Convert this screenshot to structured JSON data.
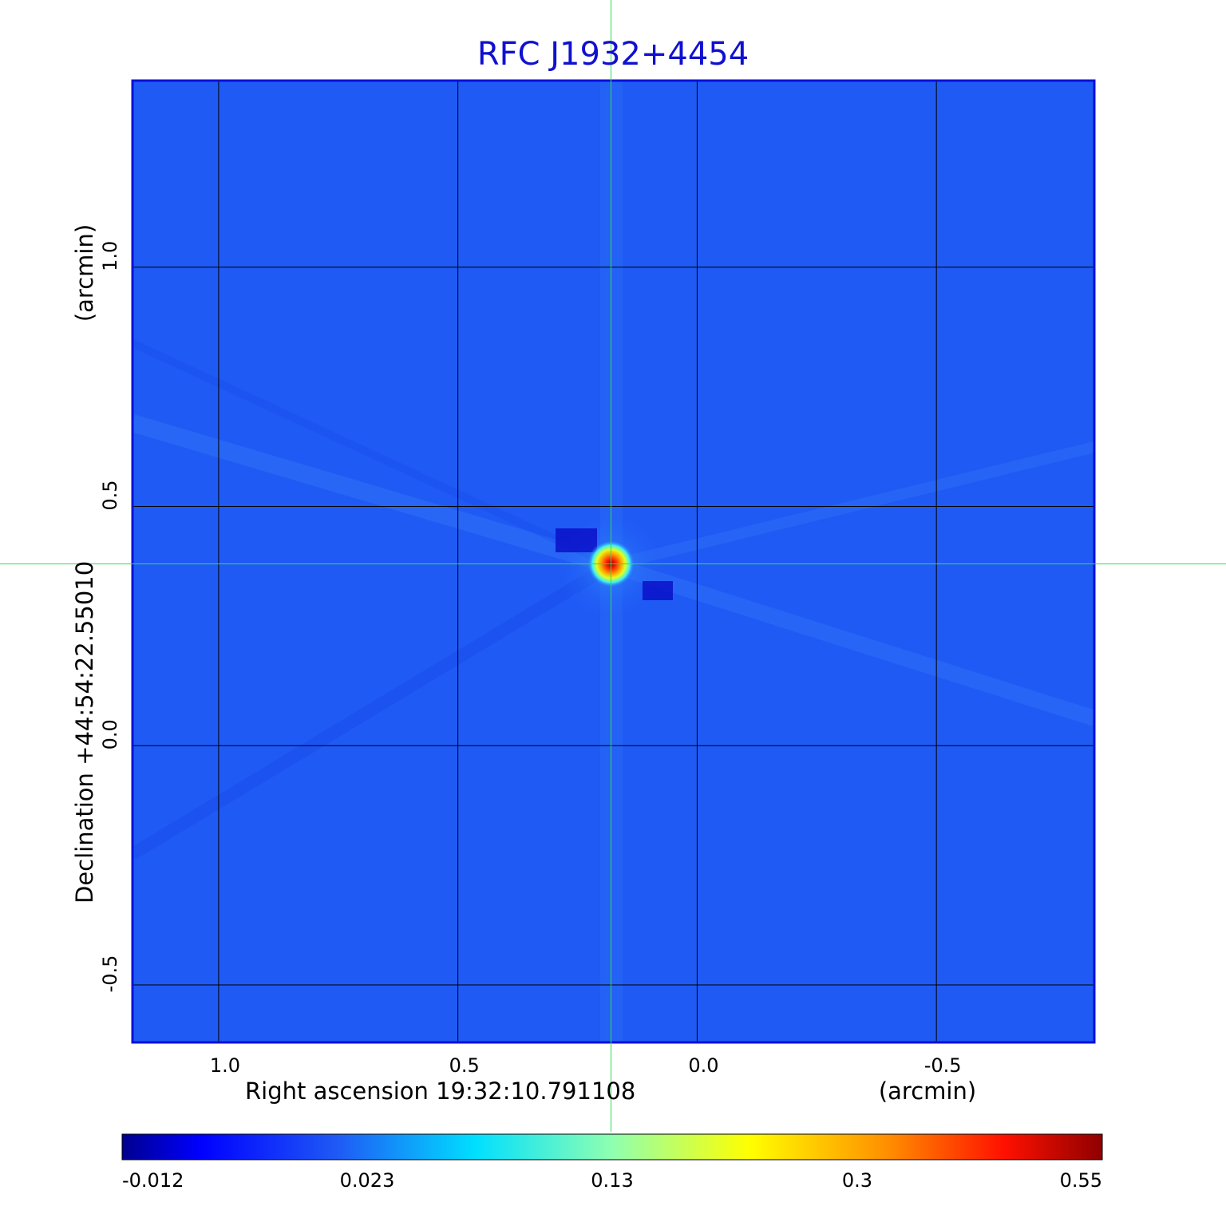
{
  "chart_data": {
    "type": "heatmap",
    "title": "RFC J1932+4454",
    "xlabel": "Right ascension  19:32:10.791108",
    "xunit": "(arcmin)",
    "ylabel": "Declination  +44:54:22.55010",
    "yunit": "(arcmin)",
    "x_ticks": [
      "1.0",
      "0.5",
      "0.0",
      "-0.5"
    ],
    "x_tick_values": [
      1.0,
      0.5,
      0.0,
      -0.5
    ],
    "y_ticks": [
      "1.0",
      "0.5",
      "0.0",
      "-0.5"
    ],
    "y_tick_values": [
      1.0,
      0.5,
      0.0,
      -0.5
    ],
    "xlim": [
      1.18,
      -0.83
    ],
    "ylim": [
      -0.62,
      1.39
    ],
    "grid": true,
    "colormap": "jet",
    "colorbar_ticks": [
      "-0.012",
      "0.023",
      "0.13",
      "0.3",
      "0.55"
    ],
    "colorbar_range": [
      -0.012,
      0.55
    ],
    "source": {
      "x": 0.18,
      "y": 0.38,
      "peak": 0.55
    },
    "crosshair": {
      "x": 0.18,
      "y": 0.38
    },
    "colors": {
      "background_field": "#1f5af5",
      "frame": "#0a10d8",
      "grid": "#000000",
      "crosshair": "#33dd55",
      "title": "#1010d0"
    }
  }
}
